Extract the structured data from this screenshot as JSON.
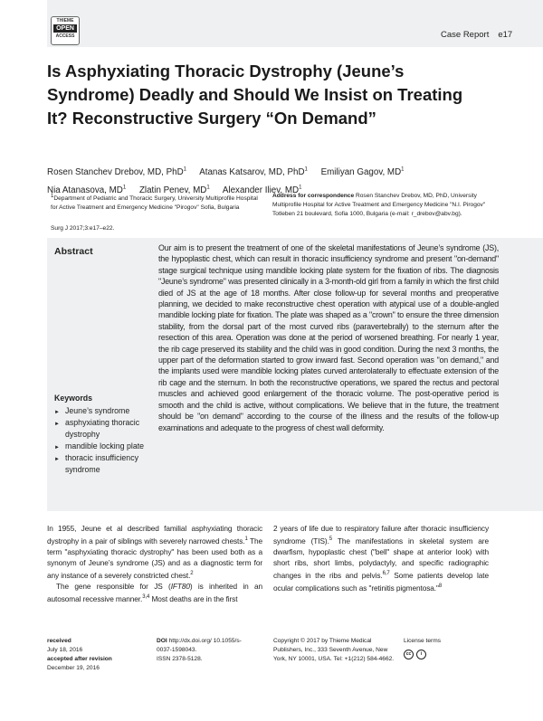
{
  "header": {
    "logo": [
      "THIEME",
      "OPEN",
      "ACCESS"
    ],
    "section": "Case Report",
    "page": "e17"
  },
  "title": "Is Asphyxiating Thoracic Dystrophy (Jeune’s Syndrome) Deadly and Should We Insist on Treating It? Reconstructive Surgery “On Demand”",
  "authors": [
    "Rosen Stanchev Drebov, MD, PhD",
    "Atanas Katsarov, MD, PhD",
    "Emiliyan Gagov, MD",
    "Nia Atanasova, MD",
    "Zlatin Penev, MD",
    "Alexander Iliev, MD"
  ],
  "affiliation_sup": "1",
  "affiliation": "Department of Pediatric and Thoracic Surgery, University Multiprofile Hospital for Active Treatment and Emergency Medicine \"Pirogov\" Sofia, Bulgaria",
  "correspondence_label": "Address for correspondence",
  "correspondence": "Rosen Stanchev Drebov, MD, PhD, University Multiprofile Hospital for Active Treatment and Emergency Medicine \"N.I. Pirogov\" Totleben 21 boulevard, Sofia 1000, Bulgaria (e-mail: r_drebov@abv.bg).",
  "citation": "Surg J 2017;3:e17–e22.",
  "abstract": {
    "heading": "Abstract",
    "text": "Our aim is to present the treatment of one of the skeletal manifestations of Jeune’s syndrome (JS), the hypoplastic chest, which can result in thoracic insufficiency syndrome and present \"on-demand\" stage surgical technique using mandible locking plate system for the fixation of ribs. The diagnosis \"Jeune’s syndrome\" was presented clinically in a 3-month-old girl from a family in which the first child died of JS at the age of 18 months. After close follow-up for several months and preoperative planning, we decided to make reconstructive chest operation with atypical use of a double-angled mandible locking plate for fixation. The plate was shaped as a \"crown\" to ensure the three dimension stability, from the dorsal part of the most curved ribs (paravertebrally) to the sternum after the resection of this area. Operation was done at the period of worsened breathing. For nearly 1 year, the rib cage preserved its stability and the child was in good condition. During the next 3 months, the upper part of the deformation started to grow inward fast. Second operation was \"on demand,\" and the implants used were mandible locking plates curved anterolaterally to effectuate extension of the rib cage and the sternum. In both the reconstructive operations, we spared the rectus and pectoral muscles and achieved good enlargement of the thoracic volume. The post-operative period is smooth and the child is active, without complications. We believe that in the future, the treatment should be \"on demand\" according to the course of the illness and the results of the follow-up examinations and adequate to the progress of chest wall deformity."
  },
  "keywords": {
    "heading": "Keywords",
    "items": [
      "Jeune’s syndrome",
      "asphyxiating thoracic dystrophy",
      "mandible locking plate",
      "thoracic insufficiency syndrome"
    ]
  },
  "body": {
    "left_p1": "In 1955, Jeune et al described familial asphyxiating thoracic dystrophy in a pair of siblings with severely narrowed chests.",
    "left_p1_ref": "1",
    "left_p1b": " The term \"asphyxiating thoracic dystrophy\" has been used both as a synonym of Jeune’s syndrome (JS) and as a diagnostic term for any instance of a severely constricted chest.",
    "left_p1b_ref": "2",
    "left_p2a": "The gene responsible for JS (",
    "left_p2_gene": "IFT80",
    "left_p2b": ") is inherited in an autosomal recessive manner.",
    "left_p2_ref": "3,4",
    "left_p2c": " Most deaths are in the first",
    "right_a": "2 years of life due to respiratory failure after thoracic insufficiency syndrome (TIS).",
    "right_a_ref": "5",
    "right_b": " The manifestations in skeletal system are dwarfism, hypoplastic chest (\"bell\" shape at anterior look) with short ribs, short limbs, polydactyly, and specific radiographic changes in the ribs and pelvis.",
    "right_b_ref": "6,7",
    "right_c": " Some patients develop late ocular complications such as \"retinitis pigmentosa.\"",
    "right_c_ref": "8"
  },
  "footer": {
    "received_label": "received",
    "received": "July 18, 2016",
    "accepted_label": "accepted after revision",
    "accepted": "December 19, 2016",
    "doi_label": "DOI",
    "doi": "http://dx.doi.org/ 10.1055/s-0037-1598043.",
    "issn": "ISSN 2378-5128.",
    "copyright": "Copyright © 2017 by Thieme Medical Publishers, Inc., 333 Seventh Avenue, New York, NY 10001, USA. Tel: +1(212) 584-4662.",
    "license": "License terms",
    "license_icons": [
      "cc-icon",
      "attribution-icon"
    ]
  }
}
